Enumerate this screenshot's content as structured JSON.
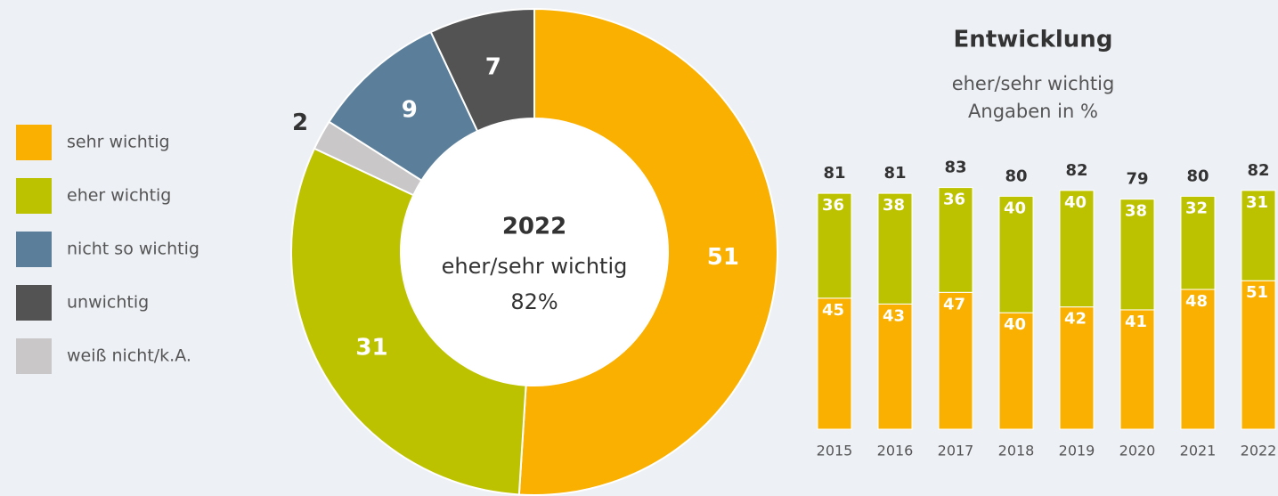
{
  "chart_data": [
    {
      "type": "pie",
      "categories": [
        "sehr wichtig",
        "eher wichtig",
        "weiß nicht/k.A.",
        "nicht so wichtig",
        "unwichtig"
      ],
      "values": [
        51,
        31,
        2,
        9,
        7
      ],
      "colors": [
        "#f9b000",
        "#bdc200",
        "#c9c7c7",
        "#5b7f9a",
        "#535353"
      ],
      "legend_order": [
        0,
        1,
        3,
        4,
        2
      ],
      "annotations": [
        "2022",
        "eher/sehr wichtig",
        "82%"
      ]
    },
    {
      "type": "bar",
      "stacked": true,
      "title": "Entwicklung",
      "subtitle": [
        "eher/sehr wichtig",
        "Angaben in %"
      ],
      "categories": [
        "2015",
        "2016",
        "2017",
        "2018",
        "2019",
        "2020",
        "2021",
        "2022"
      ],
      "series": [
        {
          "color": "#f9b000",
          "values": [
            45,
            43,
            47,
            40,
            42,
            41,
            48,
            51
          ]
        },
        {
          "color": "#bdc200",
          "values": [
            36,
            38,
            36,
            40,
            40,
            38,
            32,
            31
          ]
        }
      ],
      "totals": [
        81,
        81,
        83,
        80,
        82,
        79,
        80,
        82
      ]
    }
  ]
}
